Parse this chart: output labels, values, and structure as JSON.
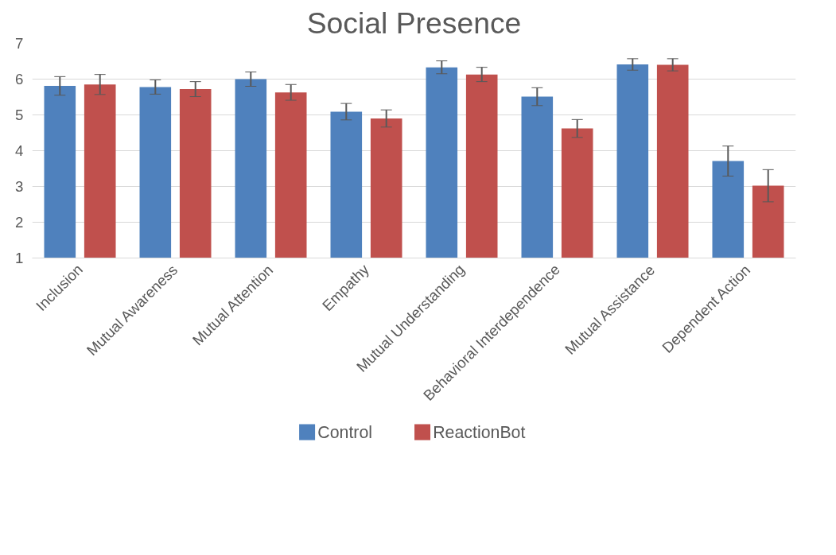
{
  "chart_data": {
    "type": "bar",
    "title": "Social Presence",
    "categories": [
      "Inclusion",
      "Mutual Awareness",
      "Mutual Attention",
      "Empathy",
      "Mutual Understanding",
      "Behavioral Interdependence",
      "Mutual Assistance",
      "Dependent Action"
    ],
    "series": [
      {
        "name": "Control",
        "color": "#4f81bd",
        "values": [
          5.81,
          5.78,
          6.0,
          5.09,
          6.33,
          5.51,
          6.41,
          3.71
        ],
        "errors": [
          0.26,
          0.2,
          0.2,
          0.23,
          0.18,
          0.25,
          0.16,
          0.42
        ]
      },
      {
        "name": "ReactionBot",
        "color": "#c0504d",
        "values": [
          5.85,
          5.72,
          5.63,
          4.9,
          6.13,
          4.62,
          6.4,
          3.02
        ],
        "errors": [
          0.28,
          0.21,
          0.22,
          0.24,
          0.2,
          0.25,
          0.17,
          0.45
        ]
      }
    ],
    "ylim": [
      1,
      7
    ],
    "yticks": [
      1,
      2,
      3,
      4,
      5,
      6,
      7
    ],
    "grid": "y",
    "legend": "bottom"
  }
}
